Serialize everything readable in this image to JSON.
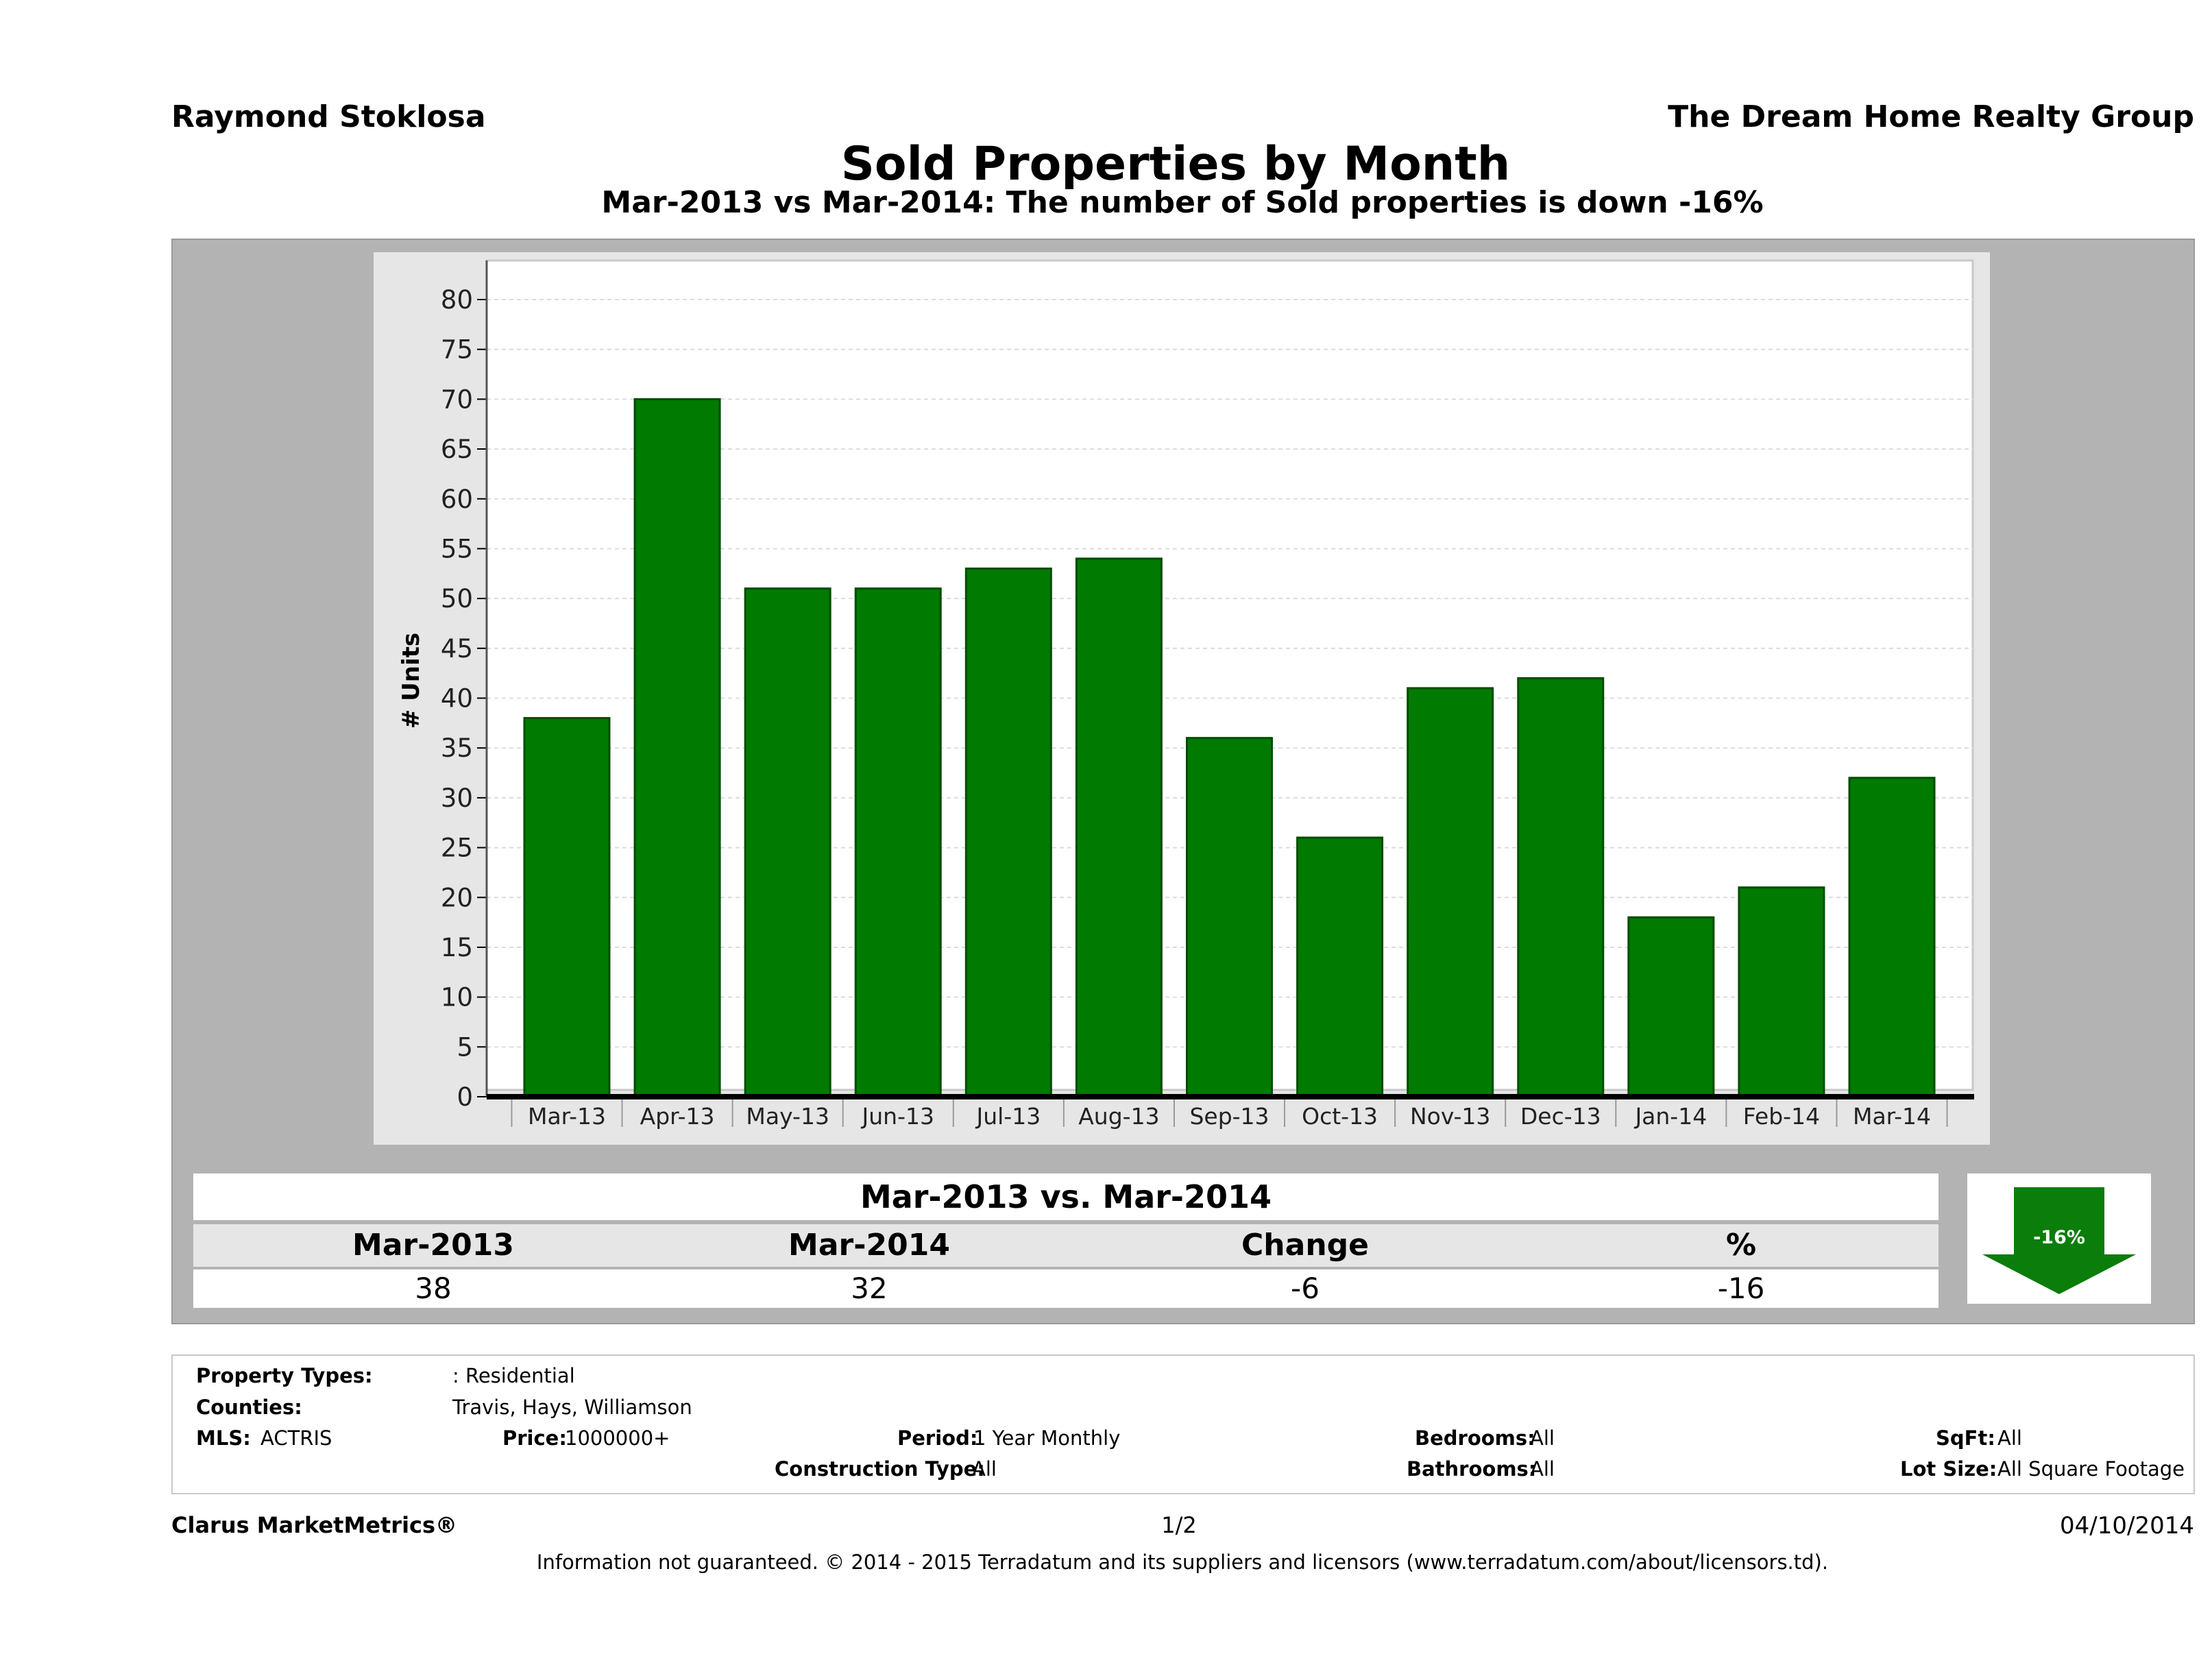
{
  "header": {
    "agent": "Raymond Stoklosa",
    "company": "The Dream Home Realty Group",
    "title": "Sold Properties by Month",
    "subtitle": "Mar-2013 vs Mar-2014: The number of Sold  properties is down -16%"
  },
  "chart_data": {
    "type": "bar",
    "categories": [
      "Mar-13",
      "Apr-13",
      "May-13",
      "Jun-13",
      "Jul-13",
      "Aug-13",
      "Sep-13",
      "Oct-13",
      "Nov-13",
      "Dec-13",
      "Jan-14",
      "Feb-14",
      "Mar-14"
    ],
    "values": [
      38,
      70,
      51,
      51,
      53,
      54,
      36,
      26,
      41,
      42,
      18,
      21,
      32
    ],
    "ylabel": "# Units",
    "xlabel": "",
    "ylim": [
      0,
      80
    ],
    "yticks": [
      0,
      5,
      10,
      15,
      20,
      25,
      30,
      35,
      40,
      45,
      50,
      55,
      60,
      65,
      70,
      75,
      80
    ],
    "grid": true,
    "colors": {
      "bar": "#007a00",
      "bar_edge": "#004d00"
    }
  },
  "summary": {
    "title": "Mar-2013 vs. Mar-2014",
    "headers": [
      "Mar-2013",
      "Mar-2014",
      "Change",
      "%"
    ],
    "values": [
      "38",
      "32",
      "-6",
      "-16"
    ],
    "badge": "-16%",
    "badge_color": "#0a7d0a"
  },
  "filters": {
    "property_types_label": "Property Types:",
    "property_types_value": ": Residential",
    "counties_label": "Counties:",
    "counties_value": "Travis, Hays, Williamson",
    "mls_label": "MLS:",
    "mls_value": "ACTRIS",
    "price_label": "Price:",
    "price_value": "1000000+",
    "period_label": "Period:",
    "period_value": "1 Year Monthly",
    "construction_label": "Construction Type:",
    "construction_value": "All",
    "bedrooms_label": "Bedrooms:",
    "bedrooms_value": "All",
    "bathrooms_label": "Bathrooms:",
    "bathrooms_value": "All",
    "sqft_label": "SqFt:",
    "sqft_value": "All",
    "lot_label": "Lot Size:",
    "lot_value": "All Square Footage"
  },
  "footer": {
    "brand": "Clarus MarketMetrics®",
    "page": "1/2",
    "date": "04/10/2014",
    "disclaimer": "Information not guaranteed. © 2014 - 2015 Terradatum and its suppliers and licensors (www.terradatum.com/about/licensors.td)."
  }
}
